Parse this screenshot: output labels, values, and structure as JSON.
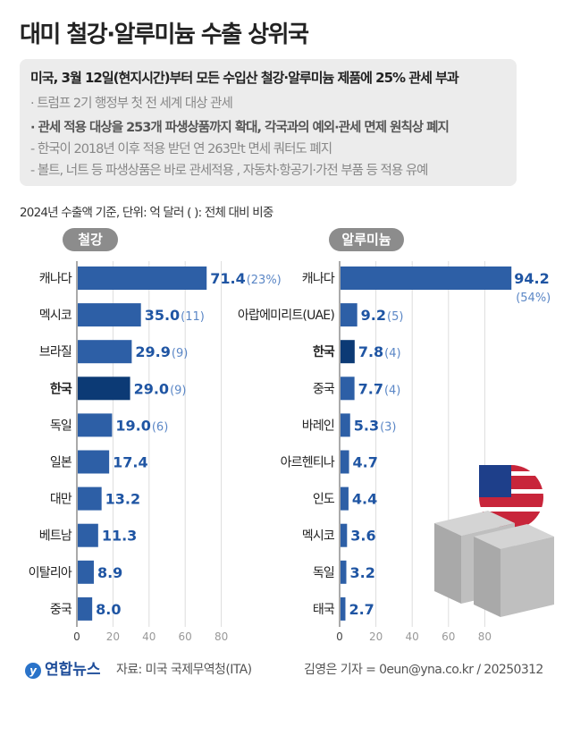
{
  "title": "대미 철강·알루미늄 수출 상위국",
  "summary": {
    "headline": "미국, 3월 12일(현지시간)부터 모든 수입산 철강·알루미늄 제품에 25% 관세 부과",
    "bullet1": "· 트럼프 2기 행정부 첫 전 세계 대상 관세",
    "bullet2": "· 관세 적용 대상을 253개 파생상품까지 확대, 각국과의 예외·관세 면제 원칙상 폐지",
    "sub1": "- 한국이 2018년 이후 적용 받던 연 263만t 면세 쿼터도 폐지",
    "sub2": "- 볼트, 너트 등 파생상품은 바로 관세적용 , 자동차·항공기·가전 부품 등 적용 유예"
  },
  "unit_note": "2024년 수출액 기준, 단위: 억 달러   ( ): 전체 대비 비중",
  "colors": {
    "bar": "#2d5fa6",
    "highlight": "#0c3a75",
    "value": "#1f55a3",
    "share": "#5b87c6"
  },
  "chart_data": [
    {
      "type": "bar",
      "orientation": "horizontal",
      "title": "철강",
      "xlim": [
        0,
        95
      ],
      "xticks": [
        "0",
        "20",
        "40",
        "60",
        "80"
      ],
      "categories": [
        "캐나다",
        "멕시코",
        "브라질",
        "한국",
        "독일",
        "일본",
        "대만",
        "베트남",
        "이탈리아",
        "중국"
      ],
      "values": [
        71.4,
        35.0,
        29.9,
        29.0,
        19.0,
        17.4,
        13.2,
        11.3,
        8.9,
        8.0
      ],
      "shares": [
        "(23%)",
        "(11)",
        "(9)",
        "(9)",
        "(6)",
        "",
        "",
        "",
        "",
        ""
      ],
      "highlight": "한국"
    },
    {
      "type": "bar",
      "orientation": "horizontal",
      "title": "알루미늄",
      "xlim": [
        0,
        95
      ],
      "xticks": [
        "0",
        "20",
        "40",
        "60",
        "80"
      ],
      "categories": [
        "캐나다",
        "아랍에미리트(UAE)",
        "한국",
        "중국",
        "바레인",
        "아르헨티나",
        "인도",
        "멕시코",
        "독일",
        "태국"
      ],
      "values": [
        94.2,
        9.2,
        7.8,
        7.7,
        5.3,
        4.7,
        4.4,
        3.6,
        3.2,
        2.7
      ],
      "shares": [
        "(54%)",
        "(5)",
        "(4)",
        "(4)",
        "(3)",
        "",
        "",
        "",
        "",
        ""
      ],
      "highlight": "한국"
    }
  ],
  "footer": {
    "logo": "연합뉴스",
    "source": "자료: 미국 국제무역청(ITA)",
    "credit": "김영은 기자 = 0eun@yna.co.kr / 20250312"
  }
}
